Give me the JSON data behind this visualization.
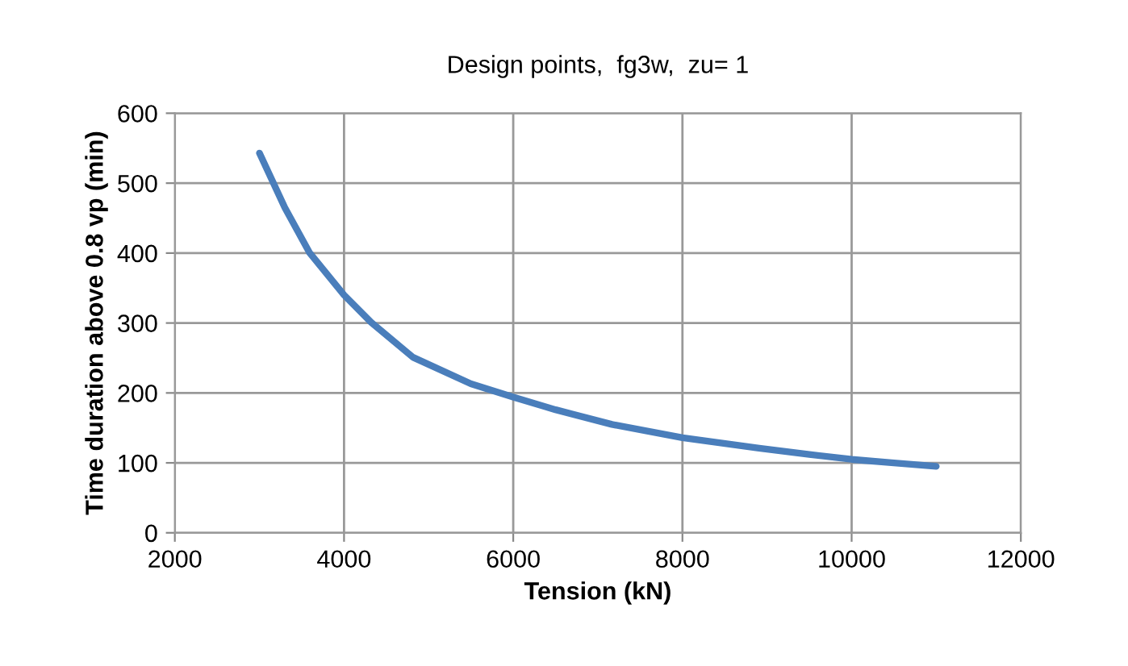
{
  "chart_data": {
    "type": "line",
    "title": "Design points,  fg3w,  zu= 1",
    "xlabel": "Tension (kN)",
    "ylabel": "Time duration above 0.8 vp (min)",
    "series": [
      {
        "color": "#4a7ebb",
        "x": [
          3000,
          3300,
          3590,
          4000,
          4320,
          4815,
          5500,
          6000,
          6500,
          7167,
          8000,
          8907,
          9500,
          10000,
          10500,
          11000
        ],
        "values": [
          543,
          465,
          401,
          340,
          301,
          251,
          213,
          194,
          176,
          155,
          136,
          121,
          112,
          105,
          100,
          95
        ]
      }
    ],
    "xlim": [
      2000,
      12000
    ],
    "xticks": [
      2000,
      4000,
      6000,
      8000,
      10000,
      12000
    ],
    "ylim": [
      0,
      600
    ],
    "yticks": [
      0,
      100,
      200,
      300,
      400,
      500,
      600
    ],
    "grid": true,
    "legend": false,
    "marker": "none",
    "line_style": "solid"
  }
}
